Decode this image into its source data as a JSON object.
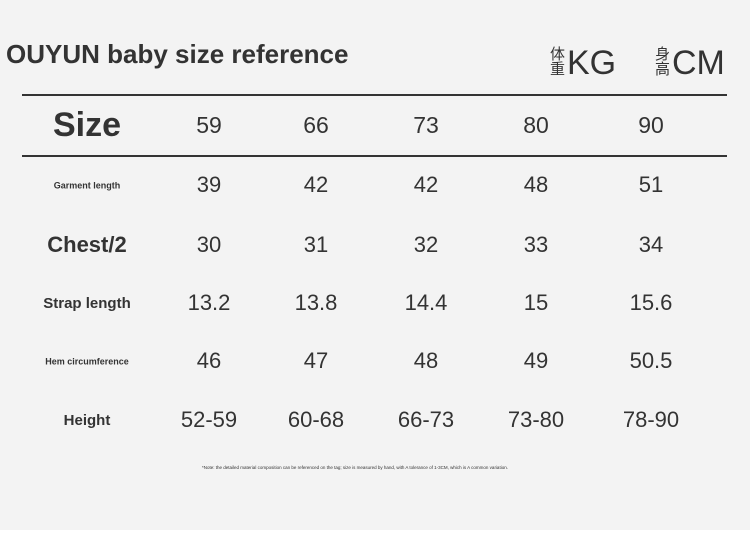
{
  "header": {
    "title": "OUYUN baby size reference",
    "units": [
      {
        "label": "体重",
        "unit": "KG"
      },
      {
        "label": "身高",
        "unit": "CM"
      }
    ]
  },
  "table": {
    "columns": [
      "Size",
      "59",
      "66",
      "73",
      "80",
      "90"
    ],
    "rows": [
      [
        "Garment length",
        "39",
        "42",
        "42",
        "48",
        "51"
      ],
      [
        "Chest/2",
        "30",
        "31",
        "32",
        "33",
        "34"
      ],
      [
        "Strap length",
        "13.2",
        "13.8",
        "14.4",
        "15",
        "15.6"
      ],
      [
        "Hem circumference",
        "46",
        "47",
        "48",
        "49",
        "50.5"
      ],
      [
        "Height",
        "52-59",
        "60-68",
        "66-73",
        "73-80",
        "78-90"
      ]
    ]
  },
  "note": "*Note: the detailed material composition can be referenced on the tag; size is measured by hand, with A tolerance of 1-3CM, which is A common variation."
}
